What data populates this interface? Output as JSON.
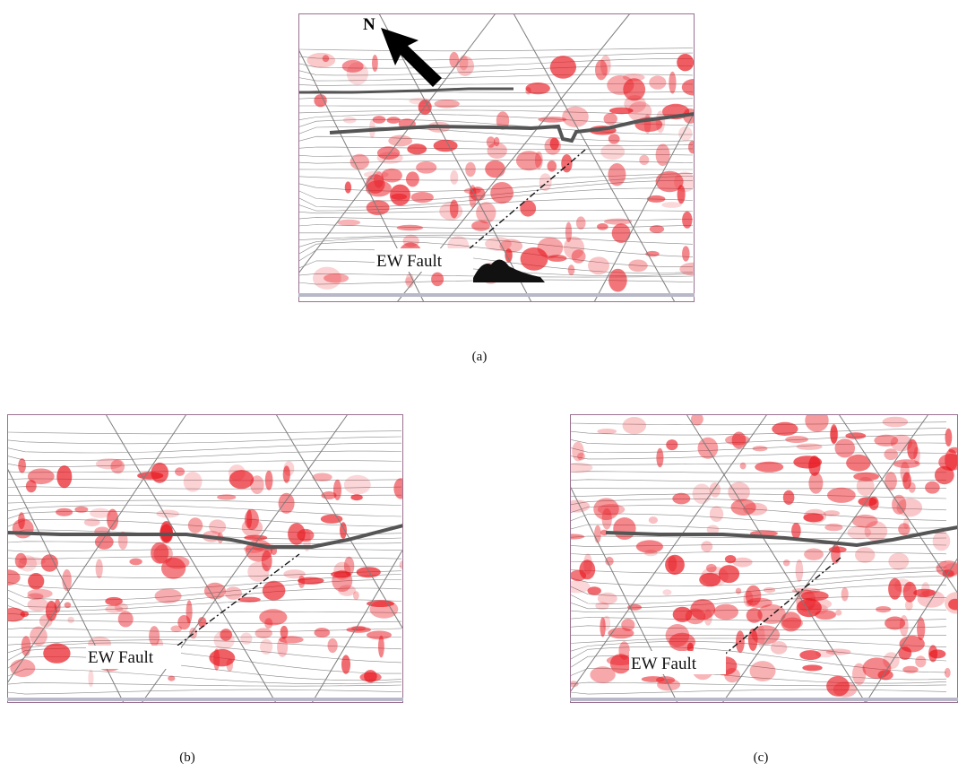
{
  "figure": {
    "panels": [
      {
        "id": "a",
        "caption": "(a)",
        "fault_label": "EW Fault",
        "north_label": "N",
        "colors": {
          "anomaly": "#e8141c",
          "contour": "#8a8a8a",
          "grid": "#7d7d7d",
          "fault_trace": "#555555",
          "frame": "#9a7090"
        }
      },
      {
        "id": "b",
        "caption": "(b)",
        "fault_label": "EW Fault",
        "colors": {
          "anomaly": "#e8141c",
          "contour": "#8a8a8a",
          "grid": "#7d7d7d",
          "fault_trace": "#555555",
          "frame": "#9a7090"
        }
      },
      {
        "id": "c",
        "caption": "(c)",
        "fault_label": "EW Fault",
        "colors": {
          "anomaly": "#e8141c",
          "contour": "#8a8a8a",
          "grid": "#7d7d7d",
          "fault_trace": "#555555",
          "frame": "#9a7090"
        }
      }
    ],
    "icons": {
      "north_arrow": "north-arrow-icon"
    }
  }
}
